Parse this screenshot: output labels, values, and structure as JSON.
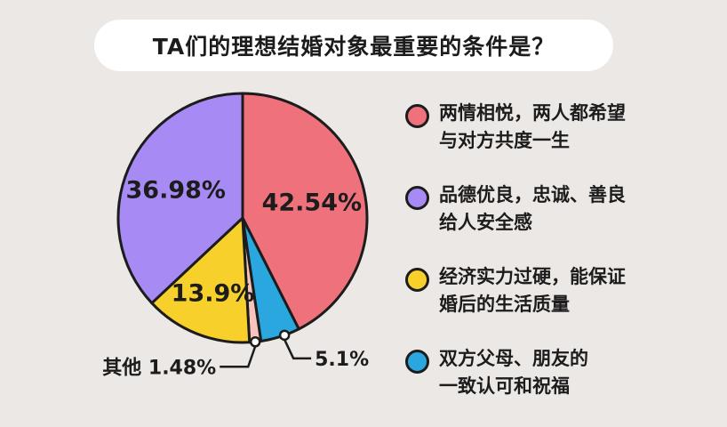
{
  "title": "TA们的理想结婚对象最重要的条件是？",
  "chart_data": {
    "type": "pie",
    "slices": [
      {
        "label": "两情相悦，两人都希望与对方共度一生",
        "value": 42.54,
        "display": "42.54%",
        "color": "#ee717b"
      },
      {
        "label": "双方父母、朋友的一致认可和祝福",
        "value": 5.1,
        "display": "5.1%",
        "color": "#2aa7df"
      },
      {
        "label": "其他",
        "value": 1.48,
        "display": "1.48%",
        "color": "#f7c3bd"
      },
      {
        "label": "经济实力过硬，能保证婚后的生活质量",
        "value": 13.9,
        "display": "13.9%",
        "color": "#f7d02b"
      },
      {
        "label": "品德优良，忠诚、善良给人安全感",
        "value": 36.98,
        "display": "36.98%",
        "color": "#a78af4"
      }
    ]
  },
  "legend": [
    {
      "line1": "两情相悦，两人都希望",
      "line2": "与对方共度一生",
      "color": "#ee717b"
    },
    {
      "line1": "品德优良，忠诚、善良",
      "line2": "给人安全感",
      "color": "#a78af4"
    },
    {
      "line1": "经济实力过硬，能保证",
      "line2": "婚后的生活质量",
      "color": "#f7d02b"
    },
    {
      "line1": "双方父母、朋友的",
      "line2": "一致认可和祝福",
      "color": "#2aa7df"
    }
  ],
  "callouts": {
    "other_label": "其他 1.48%",
    "parents_label": "5.1%"
  }
}
